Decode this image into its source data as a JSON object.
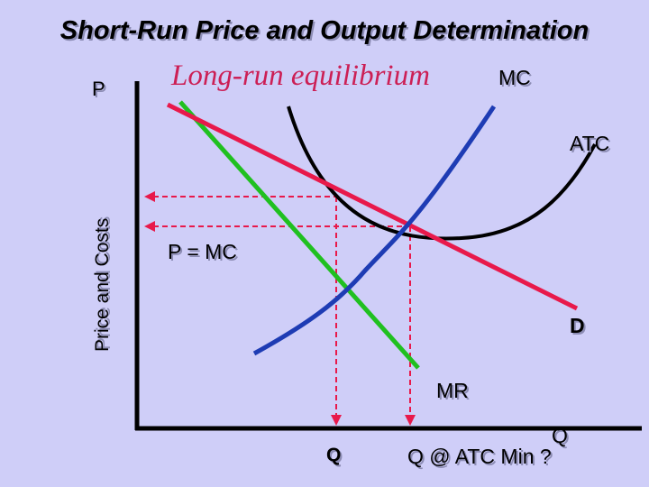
{
  "title": "Short-Run Price and Output Determination",
  "subtitle": "Long-run equilibrium",
  "axis": {
    "y_symbol": "P",
    "y_label": "Price and Costs"
  },
  "curves": {
    "mc": "MC",
    "atc": "ATC",
    "demand": "D",
    "mr": "MR"
  },
  "annotations": {
    "p_equals_mc": "P = MC",
    "q": "Q",
    "q_atc_min": "Q @ ATC Min ?",
    "q_small": "Q"
  },
  "colors": {
    "background": "#cfcef8",
    "demand": "#e8194b",
    "mr": "#20c020",
    "mc": "#1e3cb4",
    "atc": "#000000",
    "guides": "#e8194b",
    "subtitle": "#cc1f55"
  }
}
